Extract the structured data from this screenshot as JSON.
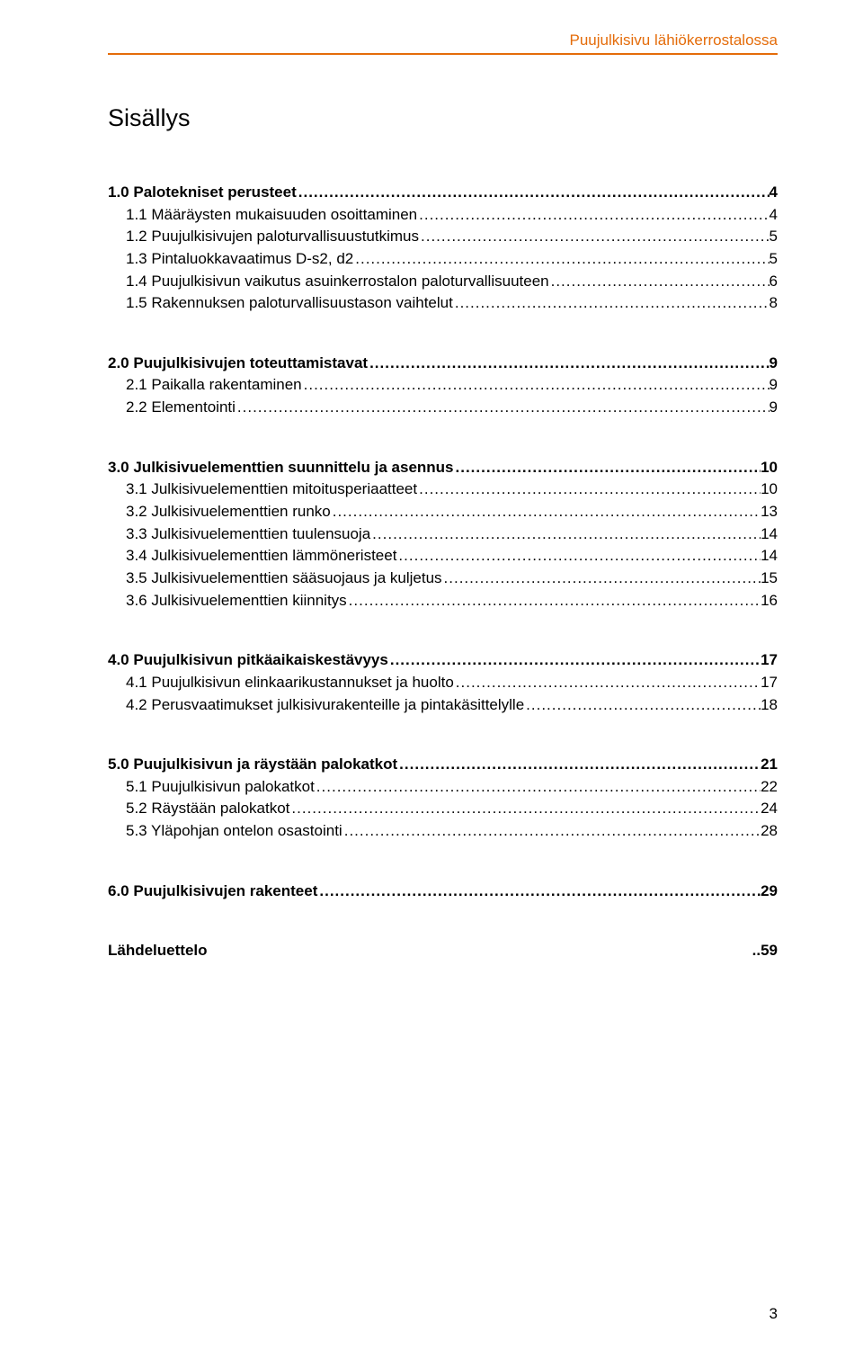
{
  "colors": {
    "accent": "#e46c0a",
    "text": "#000000",
    "background": "#ffffff"
  },
  "typography": {
    "font_family": "Arial, Helvetica, sans-serif",
    "body_fontsize": 17,
    "title_fontsize": 27,
    "header_fontsize": 17
  },
  "header": {
    "text": "Puujulkisivu lähiökerrostalossa"
  },
  "title": "Sisällys",
  "toc": {
    "sections": [
      {
        "main": {
          "label": "1.0 Palotekniset perusteet",
          "page": "4",
          "bold": true
        },
        "subs": [
          {
            "label": "1.1 Määräysten mukaisuuden osoittaminen",
            "page": "4"
          },
          {
            "label": "1.2 Puujulkisivujen paloturvallisuustutkimus",
            "page": "5"
          },
          {
            "label": "1.3 Pintaluokkavaatimus D-s2, d2",
            "page": "5"
          },
          {
            "label": "1.4 Puujulkisivun vaikutus asuinkerrostalon paloturvallisuuteen",
            "page": "6"
          },
          {
            "label": "1.5 Rakennuksen paloturvallisuustason vaihtelut",
            "page": "8"
          }
        ]
      },
      {
        "main": {
          "label": "2.0 Puujulkisivujen toteuttamistavat",
          "page": "9",
          "bold": true
        },
        "subs": [
          {
            "label": "2.1 Paikalla rakentaminen",
            "page": "9"
          },
          {
            "label": "2.2 Elementointi",
            "page": "9"
          }
        ]
      },
      {
        "main": {
          "label": "3.0 Julkisivuelementtien suunnittelu ja asennus",
          "page": "10",
          "bold": true
        },
        "subs": [
          {
            "label": "3.1 Julkisivuelementtien mitoitusperiaatteet",
            "page": "10"
          },
          {
            "label": "3.2 Julkisivuelementtien runko",
            "page": "13"
          },
          {
            "label": "3.3 Julkisivuelementtien tuulensuoja",
            "page": "14"
          },
          {
            "label": "3.4 Julkisivuelementtien lämmöneristeet",
            "page": "14"
          },
          {
            "label": "3.5 Julkisivuelementtien sääsuojaus ja kuljetus",
            "page": "15"
          },
          {
            "label": "3.6 Julkisivuelementtien kiinnitys",
            "page": "16"
          }
        ]
      },
      {
        "main": {
          "label": "4.0 Puujulkisivun pitkäaikaiskestävyys",
          "page": "17",
          "bold": true
        },
        "subs": [
          {
            "label": "4.1 Puujulkisivun elinkaarikustannukset ja huolto",
            "page": "17"
          },
          {
            "label": "4.2 Perusvaatimukset julkisivurakenteille ja pintakäsittelylle",
            "page": "18"
          }
        ]
      },
      {
        "main": {
          "label": "5.0 Puujulkisivun ja räystään palokatkot",
          "page": "21",
          "bold": true
        },
        "subs": [
          {
            "label": "5.1 Puujulkisivun palokatkot",
            "page": "22"
          },
          {
            "label": "5.2 Räystään palokatkot",
            "page": "24"
          },
          {
            "label": "5.3 Yläpohjan ontelon osastointi",
            "page": "28"
          }
        ]
      },
      {
        "main": {
          "label": "6.0 Puujulkisivujen rakenteet",
          "page": "29",
          "bold": true
        },
        "subs": []
      },
      {
        "main": {
          "label": "Lähdeluettelo",
          "page": "59",
          "bold": true,
          "nodots": true
        },
        "subs": []
      }
    ]
  },
  "page_number": "3"
}
